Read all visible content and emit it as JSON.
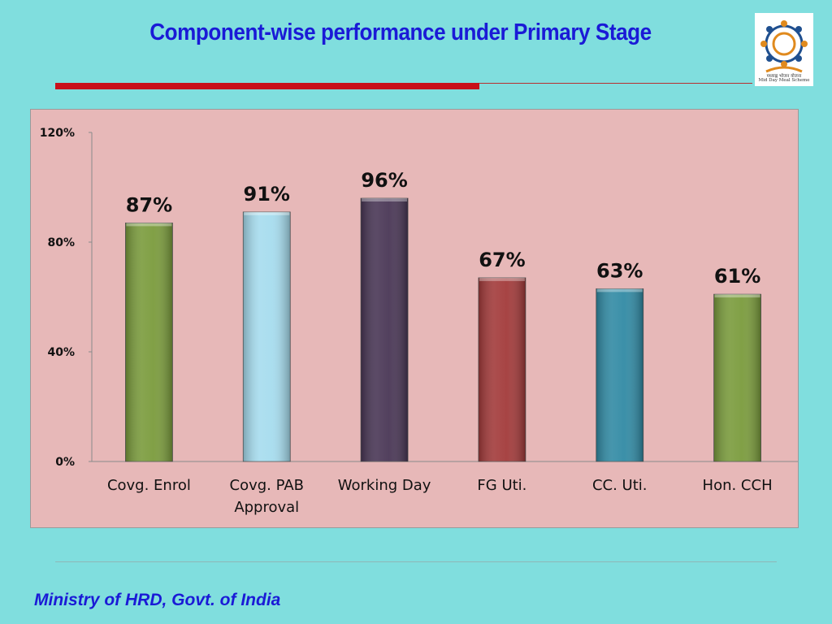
{
  "slide": {
    "title": "Component-wise performance under Primary Stage",
    "footer": "Ministry of HRD, Govt. of India",
    "logo_text_hindi": "मध्याह्न भोजन योजना",
    "logo_text": "Mid Day Meal Scheme"
  },
  "chart_data": {
    "type": "bar",
    "categories": [
      "Covg. Enrol",
      "Covg. PAB Approval",
      "Working Day",
      "FG Uti.",
      "CC. Uti.",
      "Hon. CCH"
    ],
    "category_lines": [
      [
        "Covg. Enrol"
      ],
      [
        "Covg. PAB",
        "Approval"
      ],
      [
        "Working Day"
      ],
      [
        "FG Uti."
      ],
      [
        "CC. Uti."
      ],
      [
        "Hon. CCH"
      ]
    ],
    "values": [
      87,
      91,
      96,
      67,
      63,
      61
    ],
    "value_labels": [
      "87%",
      "91%",
      "96%",
      "67%",
      "63%",
      "61%"
    ],
    "colors": [
      "#7a9b3c",
      "#a6dcee",
      "#493655",
      "#a23a3a",
      "#318aa4",
      "#7a9b3c"
    ],
    "ylim": [
      0,
      120
    ],
    "yticks": [
      0,
      40,
      80,
      120
    ],
    "ytick_labels": [
      "0%",
      "40%",
      "80%",
      "120%"
    ],
    "title": "",
    "xlabel": "",
    "ylabel": "",
    "grid": false,
    "legend": "none"
  }
}
